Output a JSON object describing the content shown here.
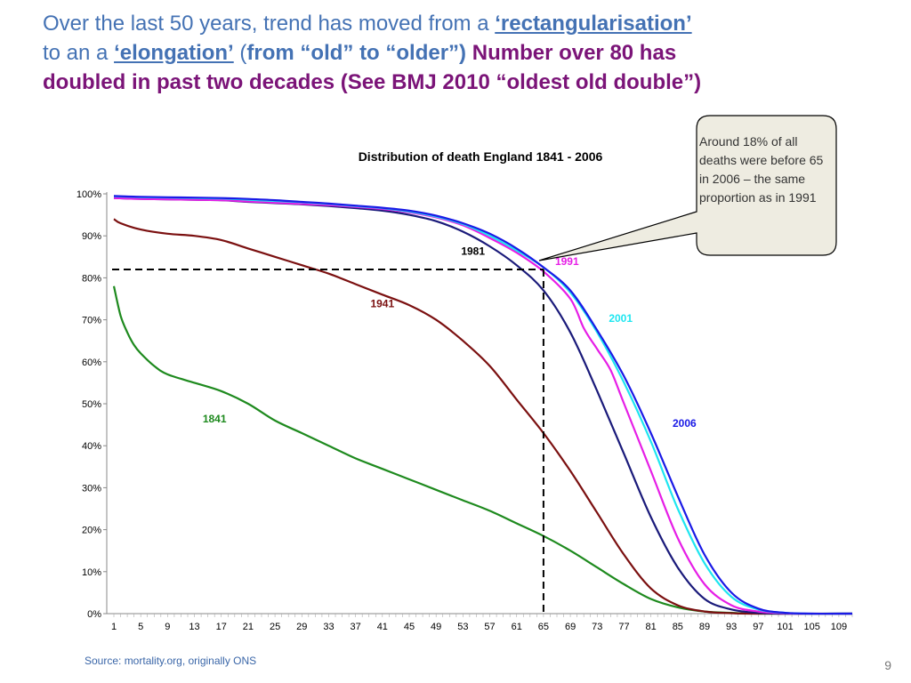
{
  "slide": {
    "title_line1_a": "Over the last 50 years,  trend has moved from a ",
    "title_line1_b": "‘rectangularisation’",
    "title_line2_a": "to an a ",
    "title_line2_b": "‘elongation’",
    "title_line2_c": " (",
    "title_line2_d": "from “old” to “older”)",
    "title_line2_e": " Number over 80 has",
    "title_line3": "doubled in past two decades  (See BMJ 2010 “oldest old double”)",
    "source": "Source: mortality.org, originally ONS",
    "page_number": "9",
    "callout": "Around 18% of all deaths were before 65 in 2006 – the same proportion as in 1991"
  },
  "chart_data": {
    "type": "line",
    "title": "Distribution of death England 1841 - 2006",
    "xlabel": "",
    "ylabel": "",
    "x_ticks": [
      "1",
      "5",
      "9",
      "13",
      "17",
      "21",
      "25",
      "29",
      "33",
      "37",
      "41",
      "45",
      "49",
      "53",
      "57",
      "61",
      "65",
      "69",
      "73",
      "77",
      "81",
      "85",
      "89",
      "93",
      "97",
      "101",
      "105",
      "109"
    ],
    "xlim": [
      1,
      111
    ],
    "ylim": [
      0,
      100
    ],
    "y_ticks": [
      "0%",
      "10%",
      "20%",
      "30%",
      "40%",
      "50%",
      "60%",
      "70%",
      "80%",
      "90%",
      "100%"
    ],
    "reference_lines": {
      "x": 65,
      "y": 82
    },
    "series": [
      {
        "name": "1841",
        "color": "#1e8a1e",
        "label_at": [
          16,
          45.5
        ],
        "points": [
          [
            1,
            78
          ],
          [
            2,
            71
          ],
          [
            3,
            67
          ],
          [
            4,
            64
          ],
          [
            5,
            62
          ],
          [
            7,
            59
          ],
          [
            9,
            57
          ],
          [
            13,
            55
          ],
          [
            17,
            53
          ],
          [
            21,
            50
          ],
          [
            25,
            46
          ],
          [
            29,
            43
          ],
          [
            33,
            40
          ],
          [
            37,
            37
          ],
          [
            41,
            34.5
          ],
          [
            45,
            32
          ],
          [
            49,
            29.5
          ],
          [
            53,
            27
          ],
          [
            57,
            24.5
          ],
          [
            61,
            21.5
          ],
          [
            65,
            18.5
          ],
          [
            69,
            15
          ],
          [
            73,
            11
          ],
          [
            77,
            7
          ],
          [
            81,
            3.5
          ],
          [
            85,
            1.5
          ],
          [
            89,
            0.5
          ],
          [
            93,
            0.2
          ],
          [
            97,
            0
          ],
          [
            111,
            0
          ]
        ]
      },
      {
        "name": "1941",
        "color": "#7b1010",
        "label_at": [
          41,
          73
        ],
        "points": [
          [
            1,
            94
          ],
          [
            2,
            93
          ],
          [
            5,
            91.5
          ],
          [
            9,
            90.5
          ],
          [
            13,
            90
          ],
          [
            17,
            89
          ],
          [
            21,
            87
          ],
          [
            25,
            85
          ],
          [
            29,
            83
          ],
          [
            33,
            81
          ],
          [
            37,
            78.5
          ],
          [
            41,
            76
          ],
          [
            45,
            73.5
          ],
          [
            49,
            70
          ],
          [
            53,
            65
          ],
          [
            57,
            59
          ],
          [
            61,
            51
          ],
          [
            65,
            43
          ],
          [
            69,
            34
          ],
          [
            73,
            24
          ],
          [
            77,
            14
          ],
          [
            81,
            6
          ],
          [
            85,
            2
          ],
          [
            89,
            0.5
          ],
          [
            93,
            0.1
          ],
          [
            97,
            0
          ],
          [
            111,
            0
          ]
        ]
      },
      {
        "name": "1981",
        "color": "#1a1a7a",
        "label_at": [
          54.5,
          85.5
        ],
        "points": [
          [
            1,
            99
          ],
          [
            5,
            98.8
          ],
          [
            9,
            98.7
          ],
          [
            13,
            98.6
          ],
          [
            17,
            98.5
          ],
          [
            21,
            98.1
          ],
          [
            25,
            97.8
          ],
          [
            29,
            97.5
          ],
          [
            33,
            97.1
          ],
          [
            37,
            96.6
          ],
          [
            41,
            96
          ],
          [
            45,
            95
          ],
          [
            49,
            93.5
          ],
          [
            53,
            91
          ],
          [
            57,
            87.5
          ],
          [
            61,
            83
          ],
          [
            65,
            77
          ],
          [
            69,
            67
          ],
          [
            73,
            53
          ],
          [
            77,
            38
          ],
          [
            81,
            23
          ],
          [
            85,
            11
          ],
          [
            89,
            3.5
          ],
          [
            93,
            1
          ],
          [
            97,
            0.2
          ],
          [
            101,
            0
          ],
          [
            111,
            0
          ]
        ]
      },
      {
        "name": "1991",
        "color": "#e61ee6",
        "label_at": [
          68.5,
          83
        ],
        "points": [
          [
            1,
            99
          ],
          [
            5,
            98.8
          ],
          [
            9,
            98.7
          ],
          [
            13,
            98.6
          ],
          [
            17,
            98.5
          ],
          [
            21,
            98.2
          ],
          [
            25,
            97.9
          ],
          [
            29,
            97.6
          ],
          [
            33,
            97.3
          ],
          [
            37,
            96.9
          ],
          [
            41,
            96.4
          ],
          [
            45,
            95.6
          ],
          [
            49,
            94.4
          ],
          [
            53,
            92.5
          ],
          [
            57,
            89.5
          ],
          [
            61,
            86
          ],
          [
            65,
            81.5
          ],
          [
            69,
            75
          ],
          [
            71,
            68
          ],
          [
            73,
            63
          ],
          [
            75,
            58
          ],
          [
            77,
            50
          ],
          [
            81,
            34
          ],
          [
            85,
            18
          ],
          [
            89,
            7
          ],
          [
            93,
            2
          ],
          [
            97,
            0.5
          ],
          [
            101,
            0.1
          ],
          [
            103,
            0
          ],
          [
            111,
            0
          ]
        ]
      },
      {
        "name": "2001",
        "color": "#1ee6f0",
        "label_at": [
          76.5,
          69.5
        ],
        "points": [
          [
            1,
            99.4
          ],
          [
            5,
            99.2
          ],
          [
            9,
            99.1
          ],
          [
            13,
            99
          ],
          [
            17,
            98.9
          ],
          [
            21,
            98.6
          ],
          [
            25,
            98.3
          ],
          [
            29,
            98
          ],
          [
            33,
            97.6
          ],
          [
            37,
            97.1
          ],
          [
            41,
            96.6
          ],
          [
            45,
            95.8
          ],
          [
            49,
            94.6
          ],
          [
            53,
            92.8
          ],
          [
            57,
            90
          ],
          [
            61,
            86.5
          ],
          [
            65,
            82.5
          ],
          [
            69,
            76.5
          ],
          [
            73,
            67
          ],
          [
            77,
            55
          ],
          [
            81,
            41
          ],
          [
            85,
            25
          ],
          [
            89,
            12
          ],
          [
            93,
            4
          ],
          [
            97,
            1
          ],
          [
            101,
            0.2
          ],
          [
            104,
            0
          ],
          [
            111,
            0
          ]
        ]
      },
      {
        "name": "2006",
        "color": "#1a1ae6",
        "label_at": [
          86,
          44.5
        ],
        "points": [
          [
            1,
            99.5
          ],
          [
            5,
            99.3
          ],
          [
            9,
            99.2
          ],
          [
            13,
            99.1
          ],
          [
            17,
            99
          ],
          [
            21,
            98.8
          ],
          [
            25,
            98.5
          ],
          [
            29,
            98.1
          ],
          [
            33,
            97.7
          ],
          [
            37,
            97.2
          ],
          [
            41,
            96.7
          ],
          [
            45,
            96
          ],
          [
            49,
            94.8
          ],
          [
            53,
            93
          ],
          [
            57,
            90.5
          ],
          [
            61,
            87
          ],
          [
            65,
            82.5
          ],
          [
            69,
            77
          ],
          [
            73,
            67.5
          ],
          [
            77,
            56.5
          ],
          [
            81,
            43
          ],
          [
            85,
            28
          ],
          [
            89,
            14
          ],
          [
            93,
            5
          ],
          [
            97,
            1.2
          ],
          [
            101,
            0.2
          ],
          [
            105,
            0
          ],
          [
            111,
            0
          ]
        ]
      }
    ]
  }
}
